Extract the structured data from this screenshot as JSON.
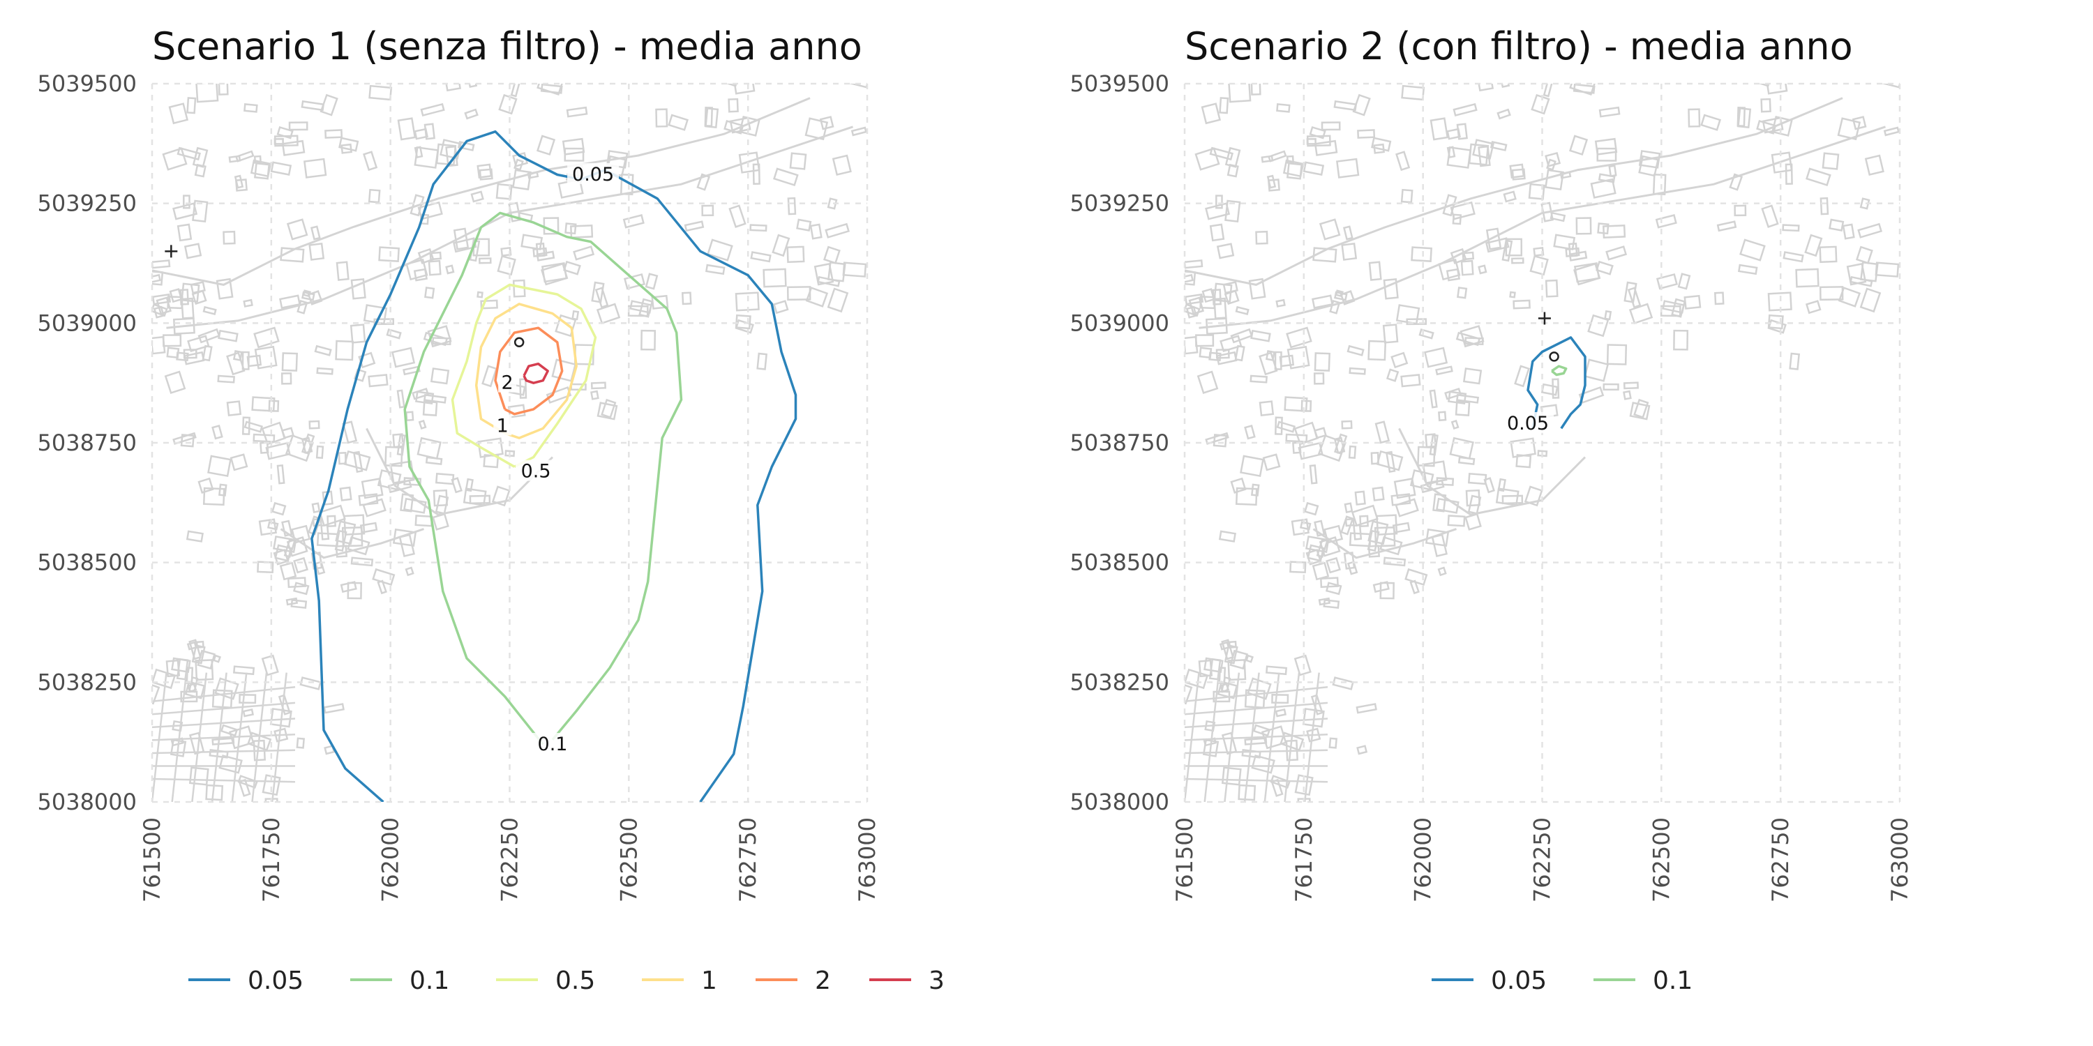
{
  "figure_description": "",
  "chart_data": [
    {
      "type": "contour-map",
      "title": "Scenario 1 (senza filtro) - media anno",
      "xlim": [
        761500,
        763000
      ],
      "ylim": [
        5038000,
        5039500
      ],
      "x_ticks": [
        "761500",
        "761750",
        "762000",
        "762250",
        "762500",
        "762750",
        "763000"
      ],
      "y_ticks": [
        "5039500",
        "5039250",
        "5039000",
        "5038750",
        "5038500",
        "5038250",
        "5038000"
      ],
      "grid": true,
      "legend_position": "bottom",
      "legend": [
        {
          "label": "0.05",
          "color": "#2b83ba"
        },
        {
          "label": "0.1",
          "color": "#99d594"
        },
        {
          "label": "0.5",
          "color": "#e6f598"
        },
        {
          "label": "1",
          "color": "#fee08b"
        },
        {
          "label": "2",
          "color": "#fc8d59"
        },
        {
          "label": "3",
          "color": "#d53e4f"
        }
      ],
      "contours": [
        {
          "level": "0.05",
          "color": "#2b83ba",
          "points": [
            [
              761985,
              5038000
            ],
            [
              761905,
              5038070
            ],
            [
              761860,
              5038150
            ],
            [
              761850,
              5038420
            ],
            [
              761835,
              5038550
            ],
            [
              761870,
              5038650
            ],
            [
              761910,
              5038820
            ],
            [
              761950,
              5038960
            ],
            [
              762000,
              5039060
            ],
            [
              762060,
              5039200
            ],
            [
              762090,
              5039290
            ],
            [
              762160,
              5039380
            ],
            [
              762220,
              5039400
            ],
            [
              762270,
              5039350
            ],
            [
              762350,
              5039310
            ],
            [
              762400,
              5039300
            ],
            [
              762450,
              5039320
            ],
            [
              762560,
              5039260
            ],
            [
              762650,
              5039150
            ],
            [
              762750,
              5039100
            ],
            [
              762800,
              5039040
            ],
            [
              762820,
              5038940
            ],
            [
              762850,
              5038850
            ],
            [
              762850,
              5038800
            ],
            [
              762800,
              5038700
            ],
            [
              762770,
              5038620
            ],
            [
              762780,
              5038440
            ],
            [
              762760,
              5038320
            ],
            [
              762740,
              5038200
            ],
            [
              762720,
              5038100
            ],
            [
              762650,
              5038000
            ]
          ]
        },
        {
          "level": "0.1",
          "color": "#99d594",
          "points": [
            [
              762320,
              5038120
            ],
            [
              762240,
              5038220
            ],
            [
              762160,
              5038300
            ],
            [
              762110,
              5038440
            ],
            [
              762080,
              5038630
            ],
            [
              762040,
              5038700
            ],
            [
              762030,
              5038820
            ],
            [
              762070,
              5038940
            ],
            [
              762120,
              5039040
            ],
            [
              762150,
              5039100
            ],
            [
              762190,
              5039200
            ],
            [
              762230,
              5039230
            ],
            [
              762300,
              5039210
            ],
            [
              762370,
              5039180
            ],
            [
              762420,
              5039170
            ],
            [
              762500,
              5039100
            ],
            [
              762580,
              5039030
            ],
            [
              762600,
              5038980
            ],
            [
              762610,
              5038840
            ],
            [
              762570,
              5038760
            ],
            [
              762560,
              5038660
            ],
            [
              762540,
              5038460
            ],
            [
              762520,
              5038380
            ],
            [
              762460,
              5038280
            ],
            [
              762390,
              5038190
            ],
            [
              762340,
              5038130
            ]
          ]
        },
        {
          "level": "0.5",
          "color": "#e6f598",
          "points": [
            [
              762260,
              5038700
            ],
            [
              762190,
              5038740
            ],
            [
              762140,
              5038770
            ],
            [
              762130,
              5038840
            ],
            [
              762160,
              5038920
            ],
            [
              762180,
              5039000
            ],
            [
              762200,
              5039050
            ],
            [
              762250,
              5039080
            ],
            [
              762350,
              5039060
            ],
            [
              762400,
              5039030
            ],
            [
              762430,
              5038970
            ],
            [
              762410,
              5038880
            ],
            [
              762350,
              5038790
            ],
            [
              762300,
              5038720
            ],
            [
              762260,
              5038700
            ]
          ]
        },
        {
          "level": "1",
          "color": "#fee08b",
          "points": [
            [
              762240,
              5038770
            ],
            [
              762190,
              5038800
            ],
            [
              762180,
              5038870
            ],
            [
              762190,
              5038950
            ],
            [
              762220,
              5039010
            ],
            [
              762270,
              5039040
            ],
            [
              762340,
              5039020
            ],
            [
              762380,
              5038990
            ],
            [
              762390,
              5038910
            ],
            [
              762370,
              5038840
            ],
            [
              762320,
              5038780
            ],
            [
              762270,
              5038760
            ],
            [
              762240,
              5038770
            ]
          ]
        },
        {
          "level": "2",
          "color": "#fc8d59",
          "points": [
            [
              762240,
              5038820
            ],
            [
              762220,
              5038880
            ],
            [
              762230,
              5038940
            ],
            [
              762260,
              5038980
            ],
            [
              762310,
              5038990
            ],
            [
              762350,
              5038960
            ],
            [
              762360,
              5038900
            ],
            [
              762340,
              5038850
            ],
            [
              762300,
              5038820
            ],
            [
              762260,
              5038810
            ],
            [
              762240,
              5038820
            ]
          ]
        },
        {
          "level": "3",
          "color": "#d53e4f",
          "points": [
            [
              762280,
              5038890
            ],
            [
              762290,
              5038910
            ],
            [
              762310,
              5038915
            ],
            [
              762330,
              5038900
            ],
            [
              762320,
              5038880
            ],
            [
              762300,
              5038875
            ],
            [
              762285,
              5038880
            ],
            [
              762280,
              5038890
            ]
          ]
        }
      ],
      "contour_labels": [
        {
          "text": "0.05",
          "x": 762425,
          "y": 5039305
        },
        {
          "text": "0.1",
          "x": 762340,
          "y": 5038115
        },
        {
          "text": "0.5",
          "x": 762305,
          "y": 5038685
        },
        {
          "text": "1",
          "x": 762235,
          "y": 5038780
        },
        {
          "text": "2",
          "x": 762245,
          "y": 5038870
        }
      ],
      "point_markers": [
        {
          "symbol": "+",
          "x": 761540,
          "y": 5039150
        },
        {
          "symbol": "o",
          "x": 762270,
          "y": 5038960
        }
      ]
    },
    {
      "type": "contour-map",
      "title": "Scenario 2 (con filtro) - media anno",
      "xlim": [
        761500,
        763000
      ],
      "ylim": [
        5038000,
        5039500
      ],
      "x_ticks": [
        "761500",
        "761750",
        "762000",
        "762250",
        "762500",
        "762750",
        "763000"
      ],
      "y_ticks": [
        "5039500",
        "5039250",
        "5039000",
        "5038750",
        "5038500",
        "5038250",
        "5038000"
      ],
      "grid": true,
      "legend_position": "bottom",
      "legend": [
        {
          "label": "0.05",
          "color": "#2b83ba"
        },
        {
          "label": "0.1",
          "color": "#99d594"
        }
      ],
      "contours": [
        {
          "level": "0.05",
          "color": "#2b83ba",
          "points": [
            [
              762230,
              5038780
            ],
            [
              762240,
              5038830
            ],
            [
              762220,
              5038860
            ],
            [
              762230,
              5038920
            ],
            [
              762250,
              5038940
            ],
            [
              762290,
              5038960
            ],
            [
              762310,
              5038970
            ],
            [
              762340,
              5038930
            ],
            [
              762340,
              5038870
            ],
            [
              762330,
              5038830
            ],
            [
              762310,
              5038810
            ],
            [
              762290,
              5038780
            ]
          ]
        },
        {
          "level": "0.1",
          "color": "#99d594",
          "points": [
            [
              762270,
              5038900
            ],
            [
              762285,
              5038910
            ],
            [
              762300,
              5038905
            ],
            [
              762295,
              5038895
            ],
            [
              762280,
              5038892
            ],
            [
              762270,
              5038900
            ]
          ]
        }
      ],
      "contour_labels": [
        {
          "text": "0.05",
          "x": 762220,
          "y": 5038785
        }
      ],
      "point_markers": [
        {
          "symbol": "+",
          "x": 762255,
          "y": 5039010
        },
        {
          "symbol": "o",
          "x": 762275,
          "y": 5038930
        }
      ]
    }
  ]
}
